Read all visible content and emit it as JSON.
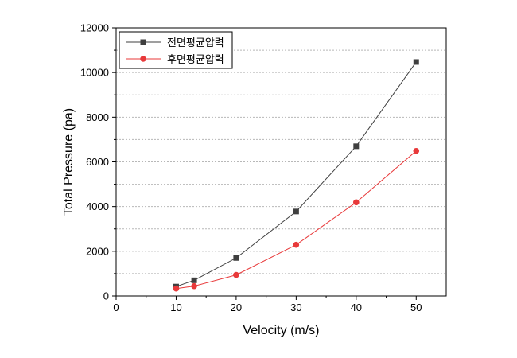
{
  "chart_data": {
    "type": "line",
    "xlabel": "Velocity (m/s)",
    "ylabel": "Total Pressure (pa)",
    "xlim": [
      0,
      55
    ],
    "ylim": [
      0,
      12000
    ],
    "xticks": [
      0,
      10,
      20,
      30,
      40,
      50
    ],
    "yticks": [
      0,
      2000,
      4000,
      6000,
      8000,
      10000,
      12000
    ],
    "grid": "horizontal dotted",
    "legend_position": "top-left",
    "series": [
      {
        "name": "전면평균압력",
        "color": "#3f3f3f",
        "marker": "square",
        "x": [
          10,
          13,
          20,
          30,
          40,
          50
        ],
        "y": [
          420,
          700,
          1700,
          3780,
          6700,
          10470
        ]
      },
      {
        "name": "후면평균압력",
        "color": "#e8393a",
        "marker": "circle",
        "x": [
          10,
          13,
          20,
          30,
          40,
          50
        ],
        "y": [
          330,
          440,
          940,
          2290,
          4190,
          6490
        ]
      }
    ]
  }
}
